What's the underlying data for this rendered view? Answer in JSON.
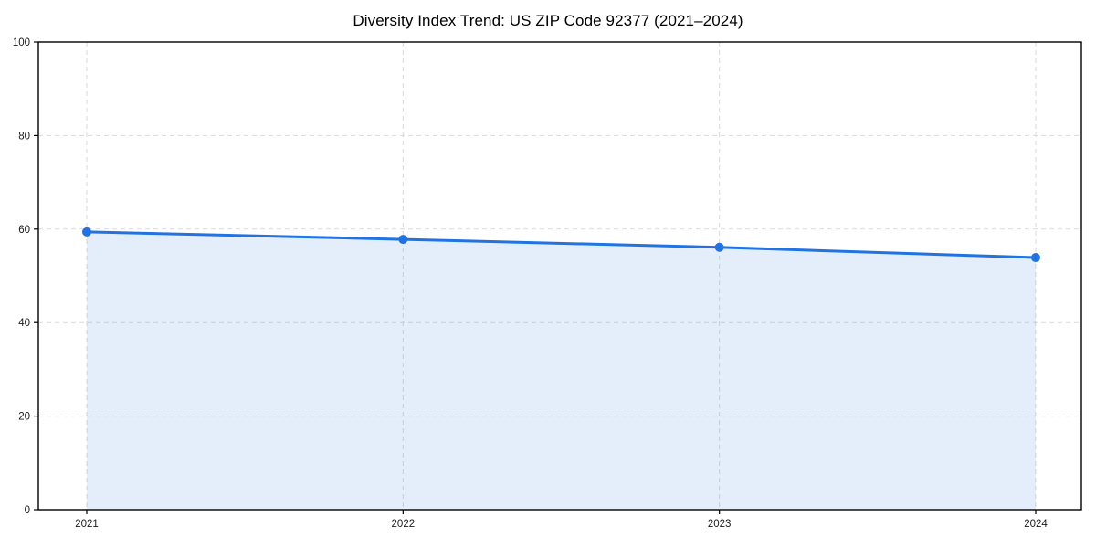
{
  "chart_data": {
    "type": "area",
    "title": "Diversity Index Trend: US ZIP Code 92377 (2021–2024)",
    "x": [
      "2021",
      "2022",
      "2023",
      "2024"
    ],
    "series": [
      {
        "name": "Diversity Index",
        "values": [
          59.4,
          57.8,
          56.1,
          53.9
        ]
      }
    ],
    "xlabel": "",
    "ylabel": "",
    "ylim": [
      0,
      100
    ],
    "yticks": [
      0,
      20,
      40,
      60,
      80,
      100
    ],
    "grid": true,
    "grid_style": "dashed",
    "legend": "none",
    "colors": {
      "line": "#2173e2",
      "marker": "#2173e2",
      "fill": "rgba(33, 115, 226, 0.12)",
      "grid": "#d9d9d9",
      "spine": "#000000",
      "tick_label": "#1a1a1a",
      "title": "#000000",
      "background": "#ffffff"
    }
  }
}
